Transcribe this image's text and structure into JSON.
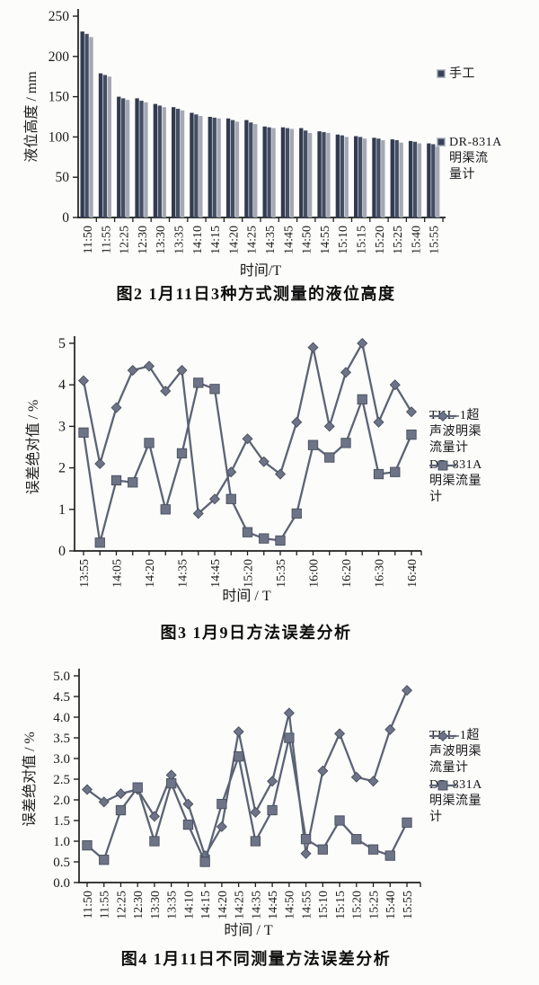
{
  "page": {
    "background": "#fcfcfa"
  },
  "colors": {
    "axis": "#1f1f1f",
    "text": "#191919",
    "line": "#5c6375",
    "marker_fill": "#6e7487",
    "marker_stroke": "#474e5e",
    "bar_dark": "#313a50",
    "bar_mid": "#434d63",
    "bar_light": "#a3a8b3"
  },
  "chart_data": [
    {
      "type": "bar",
      "title": "图2  1月11日3种方式测量的液位高度",
      "xlabel": "时间/T",
      "ylabel": "液位高度 / mm",
      "ylim": [
        0,
        250
      ],
      "ytick_step": 50,
      "ytick_decimals": 0,
      "grid": false,
      "legend_position": "right",
      "categories": [
        "11:50",
        "11:55",
        "12:25",
        "12:30",
        "13:30",
        "13:35",
        "14:10",
        "14:15",
        "14:20",
        "14:25",
        "14:35",
        "14:45",
        "14:50",
        "14:55",
        "15:10",
        "15:15",
        "15:20",
        "15:25",
        "15:40",
        "15:55"
      ],
      "series": [
        {
          "name": "手工",
          "color": "#313a50",
          "values": [
            231,
            179,
            150,
            148,
            141,
            137,
            130,
            125,
            123,
            121,
            113,
            112,
            111,
            107,
            103,
            101,
            99,
            97,
            95,
            92
          ]
        },
        {
          "name": "",
          "color": "#434d63",
          "values": [
            228,
            177,
            148,
            145,
            139,
            135,
            128,
            124,
            121,
            118,
            112,
            111,
            108,
            106,
            102,
            100,
            98,
            96,
            94,
            91
          ]
        },
        {
          "name": "DR-831A明渠流量计",
          "color": "#a3a8b3",
          "values": [
            224,
            175,
            146,
            143,
            137,
            133,
            126,
            123,
            119,
            116,
            111,
            110,
            105,
            105,
            100,
            98,
            96,
            93,
            92,
            88
          ]
        }
      ]
    },
    {
      "type": "line",
      "title": "图3  1月9日方法误差分析",
      "xlabel": "时间 / T",
      "ylabel": "误差绝对值 / %",
      "ylim": [
        0,
        5
      ],
      "ytick_step": 1,
      "ytick_decimals": 0,
      "grid": false,
      "legend_position": "right",
      "categories": [
        "13:55",
        "",
        "14:05",
        "",
        "14:20",
        "",
        "14:35",
        "",
        "14:45",
        "",
        "15:20",
        "",
        "15:35",
        "",
        "16:00",
        "",
        "16:20",
        "",
        "16:30",
        "",
        "16:40"
      ],
      "series": [
        {
          "name": "TKL-1超声波明渠流量计",
          "marker": "diamond",
          "color": "#5c6375",
          "values": [
            4.1,
            2.1,
            3.45,
            4.35,
            4.45,
            3.85,
            4.35,
            0.9,
            1.25,
            1.9,
            2.7,
            2.15,
            1.85,
            3.1,
            4.9,
            3.0,
            4.3,
            5.0,
            3.1,
            4.0,
            3.35
          ]
        },
        {
          "name": "DR-831A明渠流量计",
          "marker": "square",
          "color": "#5c6375",
          "values": [
            2.85,
            0.2,
            1.7,
            1.65,
            2.6,
            1.0,
            2.35,
            4.05,
            3.9,
            1.25,
            0.45,
            0.3,
            0.25,
            0.9,
            2.55,
            2.25,
            2.6,
            3.65,
            1.85,
            1.9,
            2.8
          ]
        }
      ]
    },
    {
      "type": "line",
      "title": "图4  1月11日不同测量方法误差分析",
      "xlabel": "时间 / T",
      "ylabel": "误差绝对值 / %",
      "ylim": [
        0,
        5
      ],
      "ytick_step": 0.5,
      "ytick_decimals": 1,
      "grid": false,
      "legend_position": "right",
      "categories": [
        "11:50",
        "11:55",
        "12:25",
        "12:30",
        "13:30",
        "13:35",
        "14:10",
        "14:15",
        "14:20",
        "14:25",
        "14:35",
        "14:45",
        "14:50",
        "14:55",
        "15:10",
        "15:15",
        "15:20",
        "15:25",
        "15:40",
        "15:55"
      ],
      "series": [
        {
          "name": "TKL-1超声波明渠流量计",
          "marker": "diamond",
          "color": "#5c6375",
          "values": [
            2.25,
            1.95,
            2.15,
            2.25,
            1.6,
            2.6,
            1.9,
            0.65,
            1.35,
            3.65,
            1.7,
            2.45,
            4.1,
            0.7,
            2.7,
            3.6,
            2.55,
            2.45,
            3.7,
            4.65
          ]
        },
        {
          "name": "DR-831A明渠流量计",
          "marker": "square",
          "color": "#5c6375",
          "values": [
            0.9,
            0.55,
            1.75,
            2.3,
            1.0,
            2.4,
            1.4,
            0.5,
            1.9,
            3.05,
            1.0,
            1.75,
            3.5,
            1.05,
            0.8,
            1.5,
            1.05,
            0.8,
            0.65,
            1.45
          ]
        }
      ]
    }
  ],
  "figures": [
    {
      "legend": [
        {
          "label": "手工"
        },
        {
          "label": "DR-831A\n明渠流\n量计"
        }
      ]
    },
    {
      "legend": [
        {
          "label": "TKL-1超\n声波明渠\n流量计"
        },
        {
          "label": "DR-831A\n明渠流量\n计"
        }
      ]
    },
    {
      "legend": [
        {
          "label": "TKL-1超\n声波明渠\n流量计"
        },
        {
          "label": "DR-831A\n明渠流量\n计"
        }
      ]
    }
  ]
}
